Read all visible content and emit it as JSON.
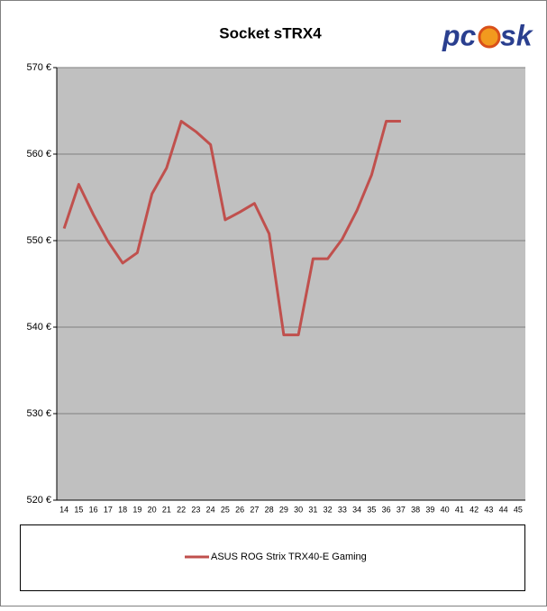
{
  "chart_data": {
    "type": "line",
    "title": "Socket sTRX4",
    "logo_left": "pc",
    "logo_right": "sk",
    "categories": [
      "14",
      "15",
      "16",
      "17",
      "18",
      "19",
      "20",
      "21",
      "22",
      "23",
      "24",
      "25",
      "26",
      "27",
      "28",
      "29",
      "30",
      "31",
      "32",
      "33",
      "34",
      "35",
      "36",
      "37",
      "38",
      "39",
      "40",
      "41",
      "42",
      "43",
      "44",
      "45"
    ],
    "series": [
      {
        "name": "ASUS ROG Strix TRX40-E Gaming",
        "color": "#c0504d",
        "values": [
          551.4,
          556.5,
          553.0,
          549.9,
          547.4,
          548.6,
          555.4,
          558.4,
          563.8,
          562.6,
          561.1,
          552.4,
          553.3,
          554.3,
          550.8,
          539.1,
          539.1,
          547.9,
          547.9,
          550.2,
          553.5,
          557.6,
          563.8,
          563.8,
          null,
          null,
          null,
          null,
          null,
          null,
          null,
          null
        ]
      }
    ],
    "ylim": [
      520,
      570
    ],
    "yticks": [
      {
        "value": 520,
        "label": "520 €"
      },
      {
        "value": 530,
        "label": "530 €"
      },
      {
        "value": 540,
        "label": "540 €"
      },
      {
        "value": 550,
        "label": "550 €"
      },
      {
        "value": 560,
        "label": "560 €"
      },
      {
        "value": 570,
        "label": "570 €"
      }
    ],
    "grid": true,
    "legend": "bottom"
  }
}
